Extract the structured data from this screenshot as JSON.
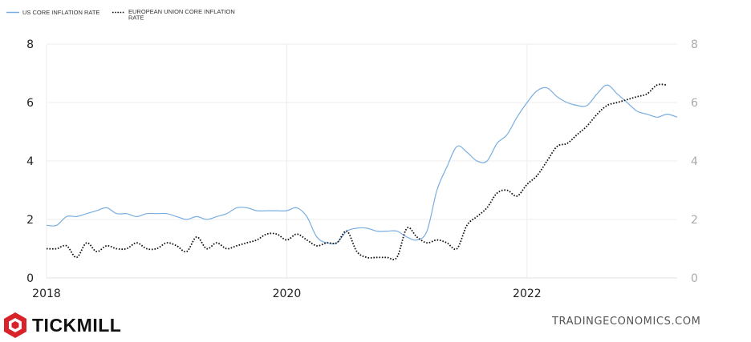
{
  "chart_data": {
    "type": "line",
    "legend": {
      "position": "top-left",
      "entries": [
        {
          "label": "US CORE INFLATION RATE",
          "style": "solid",
          "color": "#7aaee0"
        },
        {
          "label_lines": [
            "EUROPEAN UNION CORE INFLATION",
            "RATE"
          ],
          "style": "dotted",
          "color": "#111111"
        }
      ]
    },
    "x_ticks": [
      "2018",
      "2020",
      "2022"
    ],
    "y_ticks_left": [
      "0",
      "2",
      "4",
      "6",
      "8"
    ],
    "y_ticks_right": [
      "0",
      "2",
      "4",
      "6",
      "8"
    ],
    "ylim": [
      0,
      8
    ],
    "xlim": [
      "2018-01",
      "2023-04"
    ],
    "grid": "horizontal and vertical",
    "series": [
      {
        "name": "US CORE INFLATION RATE",
        "color": "#7aaee0",
        "points": [
          [
            "2018-01",
            1.8
          ],
          [
            "2018-02",
            1.8
          ],
          [
            "2018-03",
            2.1
          ],
          [
            "2018-04",
            2.1
          ],
          [
            "2018-05",
            2.2
          ],
          [
            "2018-06",
            2.3
          ],
          [
            "2018-07",
            2.4
          ],
          [
            "2018-08",
            2.2
          ],
          [
            "2018-09",
            2.2
          ],
          [
            "2018-10",
            2.1
          ],
          [
            "2018-11",
            2.2
          ],
          [
            "2018-12",
            2.2
          ],
          [
            "2019-01",
            2.2
          ],
          [
            "2019-02",
            2.1
          ],
          [
            "2019-03",
            2.0
          ],
          [
            "2019-04",
            2.1
          ],
          [
            "2019-05",
            2.0
          ],
          [
            "2019-06",
            2.1
          ],
          [
            "2019-07",
            2.2
          ],
          [
            "2019-08",
            2.4
          ],
          [
            "2019-09",
            2.4
          ],
          [
            "2019-10",
            2.3
          ],
          [
            "2019-11",
            2.3
          ],
          [
            "2019-12",
            2.3
          ],
          [
            "2020-01",
            2.3
          ],
          [
            "2020-02",
            2.4
          ],
          [
            "2020-03",
            2.1
          ],
          [
            "2020-04",
            1.4
          ],
          [
            "2020-05",
            1.2
          ],
          [
            "2020-06",
            1.2
          ],
          [
            "2020-07",
            1.6
          ],
          [
            "2020-08",
            1.7
          ],
          [
            "2020-09",
            1.7
          ],
          [
            "2020-10",
            1.6
          ],
          [
            "2020-11",
            1.6
          ],
          [
            "2020-12",
            1.6
          ],
          [
            "2021-01",
            1.4
          ],
          [
            "2021-02",
            1.3
          ],
          [
            "2021-03",
            1.6
          ],
          [
            "2021-04",
            3.0
          ],
          [
            "2021-05",
            3.8
          ],
          [
            "2021-06",
            4.5
          ],
          [
            "2021-07",
            4.3
          ],
          [
            "2021-08",
            4.0
          ],
          [
            "2021-09",
            4.0
          ],
          [
            "2021-10",
            4.6
          ],
          [
            "2021-11",
            4.9
          ],
          [
            "2021-12",
            5.5
          ],
          [
            "2022-01",
            6.0
          ],
          [
            "2022-02",
            6.4
          ],
          [
            "2022-03",
            6.5
          ],
          [
            "2022-04",
            6.2
          ],
          [
            "2022-05",
            6.0
          ],
          [
            "2022-06",
            5.9
          ],
          [
            "2022-07",
            5.9
          ],
          [
            "2022-08",
            6.3
          ],
          [
            "2022-09",
            6.6
          ],
          [
            "2022-10",
            6.3
          ],
          [
            "2022-11",
            6.0
          ],
          [
            "2022-12",
            5.7
          ],
          [
            "2023-01",
            5.6
          ],
          [
            "2023-02",
            5.5
          ],
          [
            "2023-03",
            5.6
          ],
          [
            "2023-04",
            5.5
          ]
        ]
      },
      {
        "name": "EUROPEAN UNION CORE INFLATION RATE",
        "color": "#111111",
        "points": [
          [
            "2018-01",
            1.0
          ],
          [
            "2018-02",
            1.0
          ],
          [
            "2018-03",
            1.1
          ],
          [
            "2018-04",
            0.7
          ],
          [
            "2018-05",
            1.2
          ],
          [
            "2018-06",
            0.9
          ],
          [
            "2018-07",
            1.1
          ],
          [
            "2018-08",
            1.0
          ],
          [
            "2018-09",
            1.0
          ],
          [
            "2018-10",
            1.2
          ],
          [
            "2018-11",
            1.0
          ],
          [
            "2018-12",
            1.0
          ],
          [
            "2019-01",
            1.2
          ],
          [
            "2019-02",
            1.1
          ],
          [
            "2019-03",
            0.9
          ],
          [
            "2019-04",
            1.4
          ],
          [
            "2019-05",
            1.0
          ],
          [
            "2019-06",
            1.2
          ],
          [
            "2019-07",
            1.0
          ],
          [
            "2019-08",
            1.1
          ],
          [
            "2019-09",
            1.2
          ],
          [
            "2019-10",
            1.3
          ],
          [
            "2019-11",
            1.5
          ],
          [
            "2019-12",
            1.5
          ],
          [
            "2020-01",
            1.3
          ],
          [
            "2020-02",
            1.5
          ],
          [
            "2020-03",
            1.3
          ],
          [
            "2020-04",
            1.1
          ],
          [
            "2020-05",
            1.2
          ],
          [
            "2020-06",
            1.2
          ],
          [
            "2020-07",
            1.6
          ],
          [
            "2020-08",
            0.9
          ],
          [
            "2020-09",
            0.7
          ],
          [
            "2020-10",
            0.7
          ],
          [
            "2020-11",
            0.7
          ],
          [
            "2020-12",
            0.7
          ],
          [
            "2021-01",
            1.7
          ],
          [
            "2021-02",
            1.4
          ],
          [
            "2021-03",
            1.2
          ],
          [
            "2021-04",
            1.3
          ],
          [
            "2021-05",
            1.2
          ],
          [
            "2021-06",
            1.0
          ],
          [
            "2021-07",
            1.8
          ],
          [
            "2021-08",
            2.1
          ],
          [
            "2021-09",
            2.4
          ],
          [
            "2021-10",
            2.9
          ],
          [
            "2021-11",
            3.0
          ],
          [
            "2021-12",
            2.8
          ],
          [
            "2022-01",
            3.2
          ],
          [
            "2022-02",
            3.5
          ],
          [
            "2022-03",
            4.0
          ],
          [
            "2022-04",
            4.5
          ],
          [
            "2022-05",
            4.6
          ],
          [
            "2022-06",
            4.9
          ],
          [
            "2022-07",
            5.2
          ],
          [
            "2022-08",
            5.6
          ],
          [
            "2022-09",
            5.9
          ],
          [
            "2022-10",
            6.0
          ],
          [
            "2022-11",
            6.1
          ],
          [
            "2022-12",
            6.2
          ],
          [
            "2023-01",
            6.3
          ],
          [
            "2023-02",
            6.6
          ],
          [
            "2023-03",
            6.6
          ]
        ]
      }
    ]
  },
  "brand": {
    "name": "TICKMILL",
    "logo_color": "#d8232a",
    "logo_icon": "hexagon-logo-icon"
  },
  "source": "TRADINGECONOMICS.COM"
}
